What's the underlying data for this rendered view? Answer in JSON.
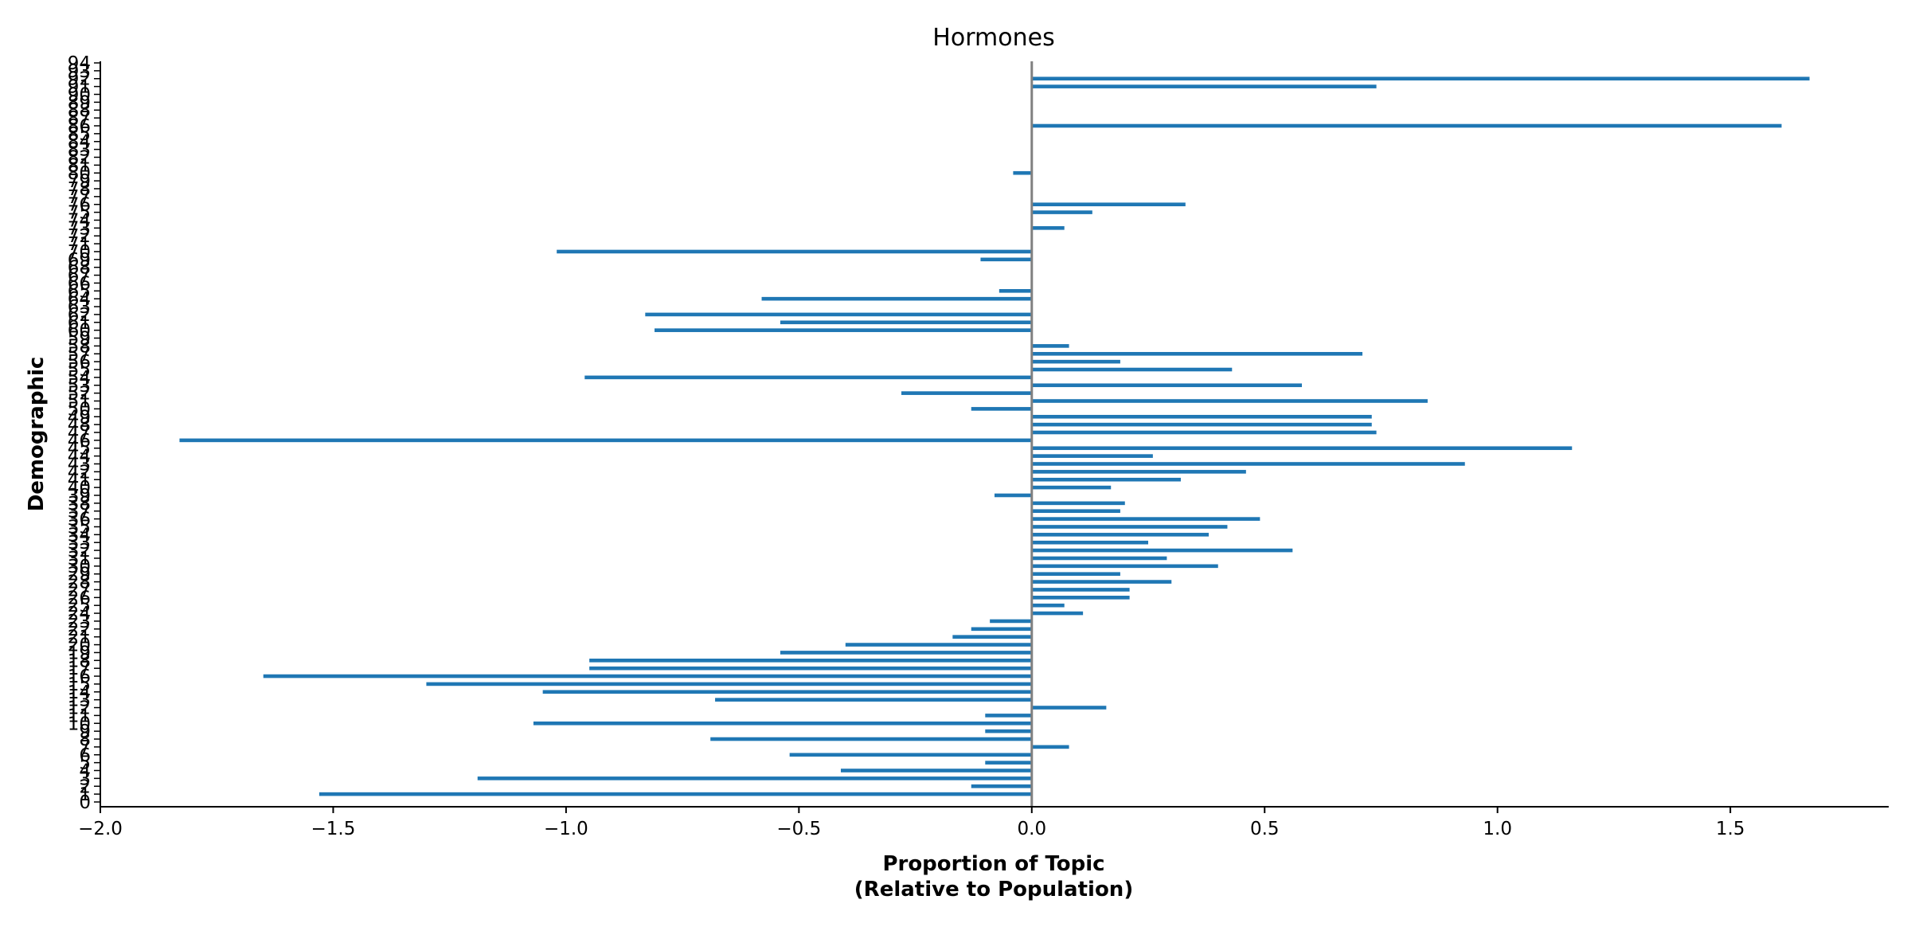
{
  "chart_data": {
    "type": "bar",
    "orientation": "horizontal",
    "title": "Hormones",
    "xlabel": "Proportion of Topic\n(Relative to Population)",
    "ylabel": "Demographic",
    "xlim": [
      -2.0,
      1.84
    ],
    "ylim": [
      0,
      94
    ],
    "xticks": [
      -2.0,
      -1.5,
      -1.0,
      -0.5,
      0.0,
      0.5,
      1.0,
      1.5
    ],
    "xtick_labels": [
      "−2.0",
      "−1.5",
      "−1.0",
      "−0.5",
      "0.0",
      "0.5",
      "1.0",
      "1.5"
    ],
    "grid": false,
    "bar_color": "#1f77b4",
    "zero_line_color": "#808080",
    "categories": [
      "0",
      "1",
      "2",
      "3",
      "4",
      "5",
      "6",
      "7",
      "8",
      "9",
      "10",
      "11",
      "12",
      "13",
      "14",
      "15",
      "16",
      "17",
      "18",
      "19",
      "20",
      "21",
      "22",
      "23",
      "24",
      "25",
      "26",
      "27",
      "28",
      "29",
      "30",
      "31",
      "32",
      "33",
      "34",
      "35",
      "36",
      "37",
      "38",
      "39",
      "40",
      "41",
      "42",
      "43",
      "44",
      "45",
      "46",
      "47",
      "48",
      "49",
      "50",
      "51",
      "52",
      "53",
      "54",
      "55",
      "56",
      "57",
      "58",
      "59",
      "60",
      "61",
      "62",
      "63",
      "64",
      "65",
      "66",
      "67",
      "68",
      "69",
      "70",
      "71",
      "72",
      "73",
      "74",
      "75",
      "76",
      "77",
      "78",
      "79",
      "80",
      "81",
      "82",
      "83",
      "84",
      "85",
      "86",
      "87",
      "88",
      "89",
      "90",
      "91",
      "92",
      "93",
      "94"
    ],
    "values": [
      0.0,
      -1.53,
      -0.13,
      -1.19,
      -0.41,
      -0.1,
      -0.52,
      0.08,
      -0.69,
      -0.1,
      -1.07,
      -0.1,
      0.16,
      -0.68,
      -1.05,
      -1.3,
      -1.65,
      -0.95,
      -0.95,
      -0.54,
      -0.4,
      -0.17,
      -0.13,
      -0.09,
      0.11,
      0.07,
      0.21,
      0.21,
      0.3,
      0.19,
      0.4,
      0.29,
      0.56,
      0.25,
      0.38,
      0.42,
      0.49,
      0.19,
      0.2,
      -0.08,
      0.17,
      0.32,
      0.46,
      0.93,
      0.26,
      1.16,
      -1.83,
      0.74,
      0.73,
      0.73,
      -0.13,
      0.85,
      -0.28,
      0.58,
      -0.96,
      0.43,
      0.19,
      0.71,
      0.08,
      0.0,
      -0.81,
      -0.54,
      -0.83,
      0.0,
      -0.58,
      -0.07,
      0.0,
      0.0,
      0.0,
      -0.11,
      -1.02,
      0.0,
      0.0,
      0.07,
      0.0,
      0.13,
      0.33,
      0.0,
      0.0,
      0.0,
      -0.04,
      0.0,
      0.0,
      0.0,
      0.0,
      0.0,
      1.61,
      0.0,
      0.0,
      0.0,
      0.0,
      0.74,
      1.67,
      0.0,
      0.0
    ]
  }
}
